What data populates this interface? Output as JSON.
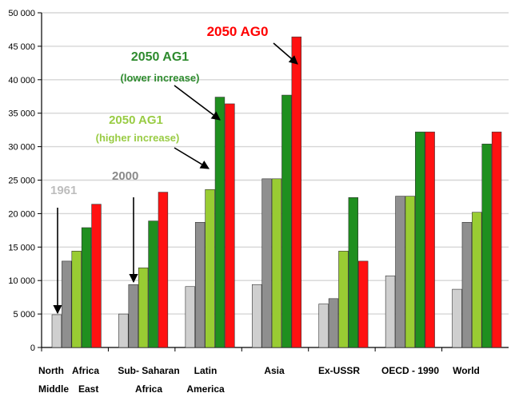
{
  "chart_data": {
    "type": "bar",
    "categories": [
      [
        "North",
        "Africa",
        "Middle",
        "East"
      ],
      [
        "Sub- Saharan",
        "Africa"
      ],
      [
        "Latin",
        "America"
      ],
      [
        "Asia"
      ],
      [
        "Ex-USSR"
      ],
      [
        "OECD - 1990"
      ],
      [
        "World"
      ]
    ],
    "series": [
      {
        "values": [
          4900,
          5000,
          9100,
          9400,
          6500,
          10700,
          8700
        ]
      },
      {
        "values": [
          12900,
          9400,
          18700,
          25200,
          7300,
          22600,
          18700
        ]
      },
      {
        "values": [
          14400,
          11900,
          23600,
          25200,
          14400,
          22600,
          20200
        ]
      },
      {
        "values": [
          17900,
          18900,
          37400,
          37700,
          22400,
          32200,
          30400
        ]
      },
      {
        "values": [
          21400,
          23200,
          36400,
          46400,
          12900,
          32200,
          32200
        ]
      }
    ],
    "colors": [
      "#cfcfcf",
      "#8f8f8f",
      "#99cc33",
      "#1f8f1f",
      "#ff1111"
    ],
    "ylim": [
      0,
      50000
    ],
    "yticks": [
      "0",
      "5 000",
      "10 000",
      "15 000",
      "20 000",
      "25 000",
      "30 000",
      "35 000",
      "40 000",
      "45 000",
      "50 000"
    ],
    "grid": true,
    "annotations": [
      {
        "lines": [
          "1961"
        ],
        "color": "#bdbdbd"
      },
      {
        "lines": [
          "2000"
        ],
        "color": "#8a8a8a"
      },
      {
        "lines": [
          "2050 AG1",
          "(higher increase)"
        ],
        "color": "#99cc44"
      },
      {
        "lines": [
          "2050 AG1",
          "(lower increase)"
        ],
        "color": "#2e8b2e"
      },
      {
        "lines": [
          "2050 AG0"
        ],
        "color": "#ff0000"
      }
    ]
  }
}
